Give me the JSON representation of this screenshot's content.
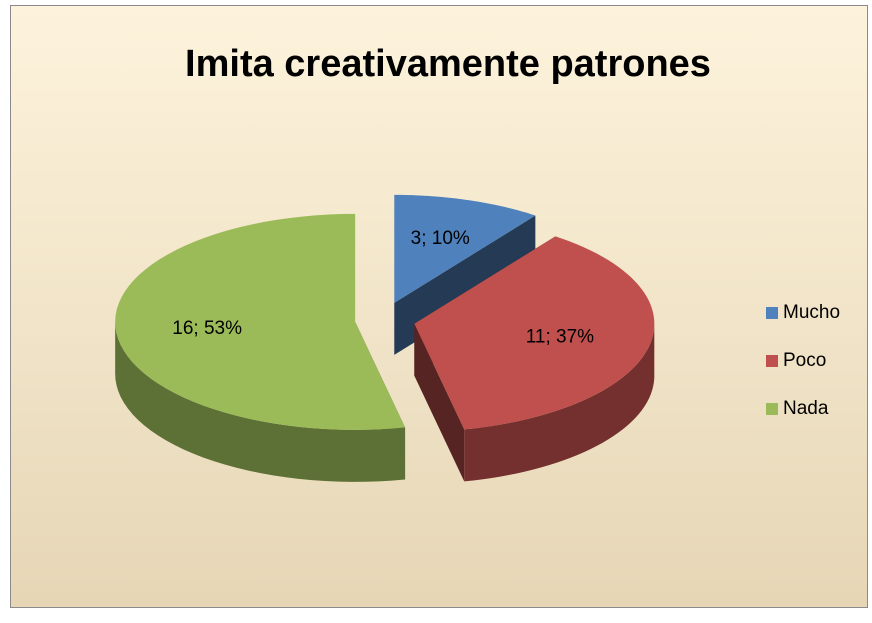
{
  "chart_data": {
    "type": "pie",
    "title": "Imita creativamente patrones",
    "categories": [
      "Mucho",
      "Poco",
      "Nada"
    ],
    "values": [
      3,
      11,
      16
    ],
    "value_labels": [
      "3; 10%",
      "11; 37%",
      "16; 53%"
    ],
    "colors": [
      "#4f81bd",
      "#c0504d",
      "#9bbb59"
    ],
    "legend": "right"
  }
}
